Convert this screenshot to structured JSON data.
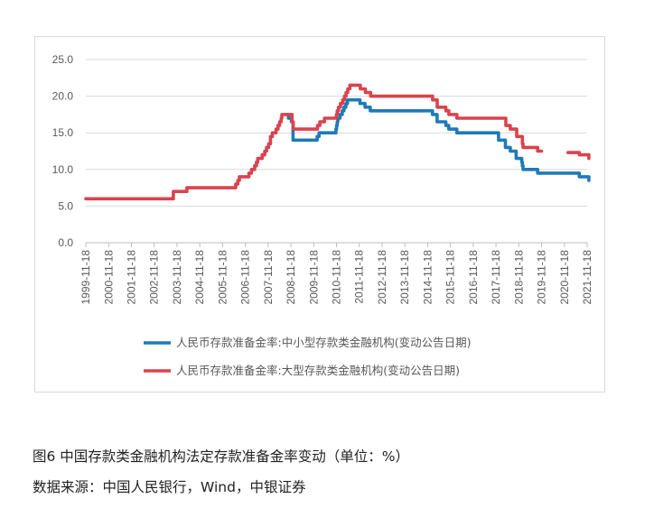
{
  "figure": {
    "caption": "图6 中国存款类金融机构法定存款准备金率变动（单位：%）",
    "source": "数据来源：中国人民银行，Wind，中银证券"
  },
  "chart_data": {
    "type": "line",
    "title": "",
    "xlabel": "",
    "ylabel": "",
    "ylim": [
      0,
      25
    ],
    "yticks": [
      "0.0",
      "5.0",
      "10.0",
      "15.0",
      "20.0",
      "25.0"
    ],
    "xlim": [
      "1999-11-18",
      "2021-11-18"
    ],
    "xticks": [
      "1999-11-18",
      "2000-11-18",
      "2001-11-18",
      "2002-11-18",
      "2003-11-18",
      "2004-11-18",
      "2005-11-18",
      "2006-11-18",
      "2007-11-18",
      "2008-11-18",
      "2009-11-18",
      "2010-11-18",
      "2011-11-18",
      "2012-11-18",
      "2013-11-18",
      "2014-11-18",
      "2015-11-18",
      "2016-11-18",
      "2017-11-18",
      "2018-11-18",
      "2019-11-18",
      "2020-11-18",
      "2021-11-18"
    ],
    "grid": true,
    "legend_position": "bottom",
    "series": [
      {
        "name": "人民币存款准备金率:中小型存款类金融机构(变动公告日期)",
        "color": "#1f7ab8",
        "x": [
          "2008-09-15",
          "2008-10-08",
          "2008-11-26",
          "2008-12-22",
          "2010-01-12",
          "2010-02-12",
          "2010-05-02",
          "2010-11-10",
          "2010-11-19",
          "2010-11-29",
          "2010-12-10",
          "2011-01-14",
          "2011-02-18",
          "2011-03-18",
          "2011-04-17",
          "2011-05-12",
          "2011-06-14",
          "2011-11-30",
          "2012-02-18",
          "2012-05-12",
          "2015-02-04",
          "2015-04-19",
          "2015-09-06",
          "2015-10-23",
          "2016-02-29",
          "2017-12-29",
          "2018-04-17",
          "2018-07-05",
          "2018-10-07",
          "2019-01-04",
          "2019-01-15",
          "2019-01-25",
          "2019-09-16",
          "2020-01-06",
          "2021-07-15",
          "2021-12-15"
        ],
        "y": [
          17.5,
          17.0,
          16.5,
          14.0,
          14.5,
          15.0,
          15.0,
          15.5,
          16.0,
          16.5,
          17.0,
          17.5,
          18.0,
          18.5,
          19.0,
          19.5,
          19.5,
          19.0,
          18.5,
          18.0,
          17.5,
          16.5,
          16.0,
          15.5,
          15.0,
          14.0,
          13.0,
          12.5,
          11.5,
          11.0,
          10.5,
          10.0,
          9.5,
          9.5,
          9.0,
          8.5
        ]
      },
      {
        "name": "人民币存款准备金率:大型存款类金融机构(变动公告日期)",
        "color": "#d9434f",
        "x": [
          "1999-11-18",
          "2003-09-21",
          "2004-04-25",
          "2006-06-16",
          "2006-07-21",
          "2006-08-15",
          "2006-11-15",
          "2007-01-15",
          "2007-02-25",
          "2007-04-16",
          "2007-05-15",
          "2007-06-05",
          "2007-08-15",
          "2007-09-25",
          "2007-10-25",
          "2007-11-26",
          "2007-12-25",
          "2008-01-25",
          "2008-03-25",
          "2008-04-25",
          "2008-05-20",
          "2008-06-15",
          "2008-06-25",
          "2008-10-15",
          "2008-12-05",
          "2008-12-25",
          "2010-01-18",
          "2010-02-25",
          "2010-05-10",
          "2010-11-16",
          "2010-11-29",
          "2010-12-20",
          "2011-01-20",
          "2011-02-24",
          "2011-03-25",
          "2011-04-21",
          "2011-05-18",
          "2011-06-20",
          "2011-12-05",
          "2012-02-24",
          "2012-05-18",
          "2015-02-05",
          "2015-04-20",
          "2015-09-06",
          "2015-10-24",
          "2016-03-01",
          "2018-04-25",
          "2018-07-05",
          "2018-10-15",
          "2019-01-15",
          "2019-01-25",
          "2019-09-16",
          "2019-11-18"
        ],
        "y": [
          6.0,
          7.0,
          7.5,
          8.0,
          8.5,
          9.0,
          9.0,
          9.5,
          10.0,
          10.5,
          11.0,
          11.5,
          12.0,
          12.5,
          13.0,
          13.5,
          14.5,
          15.0,
          15.5,
          16.0,
          16.5,
          17.0,
          17.5,
          17.5,
          16.5,
          15.5,
          16.0,
          16.5,
          17.0,
          17.5,
          18.0,
          18.5,
          19.0,
          19.5,
          20.0,
          20.5,
          21.0,
          21.5,
          21.0,
          20.5,
          20.0,
          19.5,
          18.5,
          18.0,
          17.5,
          17.0,
          16.0,
          15.5,
          14.5,
          13.5,
          13.0,
          12.5,
          12.5
        ]
      },
      {
        "name": "",
        "color": "#d9434f",
        "x": [
          "2021-01-15",
          "2021-07-15",
          "2021-12-15"
        ],
        "y": [
          12.3,
          12.0,
          11.5
        ]
      }
    ]
  }
}
